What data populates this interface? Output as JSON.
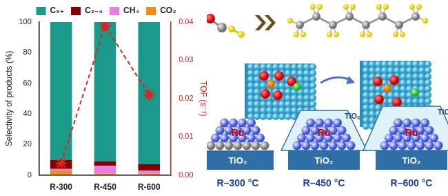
{
  "chart_data": {
    "type": "bar",
    "categories": [
      "R-300",
      "R-450",
      "R-600"
    ],
    "y_label": "Selectivity of products (%)",
    "y2_label": "TOF (s⁻¹)",
    "ylim": [
      0,
      100
    ],
    "yticks": [
      0,
      20,
      40,
      60,
      80,
      100
    ],
    "y2lim": [
      0,
      0.04
    ],
    "y2ticks": [
      {
        "value": 0,
        "label": "0.00"
      },
      {
        "value": 0.01,
        "label": "0.01"
      },
      {
        "value": 0.02,
        "label": "0.02"
      },
      {
        "value": 0.03,
        "label": "0.03"
      },
      {
        "value": 0.04,
        "label": "0.04"
      }
    ],
    "stacked": true,
    "grid": false,
    "legend": "top",
    "series": [
      {
        "name": "CO₂",
        "color": "#f28c18",
        "values": [
          3,
          1,
          1
        ]
      },
      {
        "name": "CH₄",
        "color": "#e67ee6",
        "values": [
          1,
          5,
          2
        ]
      },
      {
        "name": "C₂₋₄",
        "color": "#800000",
        "values": [
          6,
          3,
          4
        ]
      },
      {
        "name": "C₅₊",
        "color": "#1b998b",
        "values": [
          90,
          91,
          93
        ]
      },
      {
        "type": "line",
        "axis": "y2",
        "color": "#e0201b",
        "marker": "star",
        "line_style": "dashed",
        "values": [
          0.003,
          0.039,
          0.021
        ]
      }
    ]
  },
  "diagram": {
    "panels": [
      {
        "label": "R–300 °C",
        "metal": "Ru",
        "support": "TiO₂"
      },
      {
        "label": "R–450 °C",
        "metal": "Ru",
        "support": "TiO₂",
        "overlayer": "TiOₓ"
      },
      {
        "label": "R–600 °C",
        "metal": "Ru",
        "support": "TiO₂",
        "overlayer": "TiOₓ"
      }
    ]
  }
}
